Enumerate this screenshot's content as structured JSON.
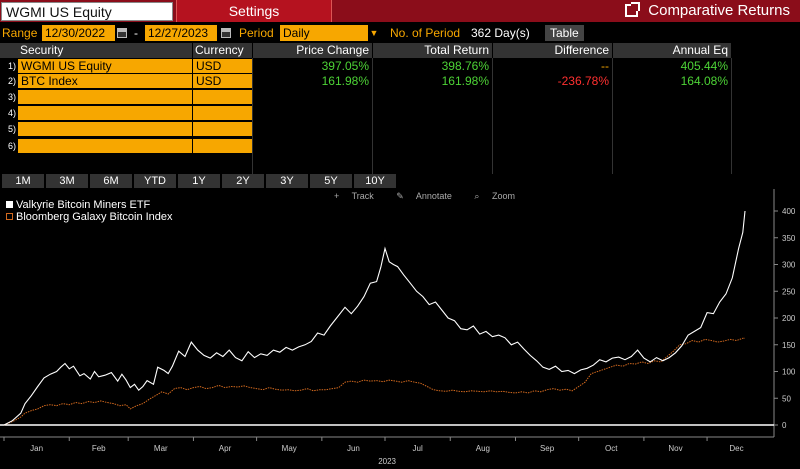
{
  "header": {
    "ticker": "WGMI US Equity",
    "settings_tab": "Settings",
    "function_title": "Comparative Returns",
    "popout_icon": "popout-icon"
  },
  "range": {
    "label": "Range",
    "start": "12/30/2022",
    "dash": "-",
    "end": "12/27/2023",
    "period_label": "Period",
    "period_value": "Daily",
    "num_period_label": "No. of Period",
    "num_period_value": "362 Day(s)",
    "table_button": "Table"
  },
  "table": {
    "columns": [
      "Security",
      "Currency",
      "Price Change",
      "Total Return",
      "Difference",
      "Annual Eq"
    ],
    "rows": [
      {
        "num": "1)",
        "security": "WGMI US Equity",
        "currency": "USD",
        "price_change": "397.05%",
        "total_return": "398.76%",
        "difference": "--",
        "annual_eq": "405.44%"
      },
      {
        "num": "2)",
        "security": "BTC Index",
        "currency": "USD",
        "price_change": "161.98%",
        "total_return": "161.98%",
        "difference": "-236.78%",
        "annual_eq": "164.08%"
      },
      {
        "num": "3)",
        "security": "",
        "currency": "",
        "price_change": "",
        "total_return": "",
        "difference": "",
        "annual_eq": ""
      },
      {
        "num": "4)",
        "security": "",
        "currency": "",
        "price_change": "",
        "total_return": "",
        "difference": "",
        "annual_eq": ""
      },
      {
        "num": "5)",
        "security": "",
        "currency": "",
        "price_change": "",
        "total_return": "",
        "difference": "",
        "annual_eq": ""
      },
      {
        "num": "6)",
        "security": "",
        "currency": "",
        "price_change": "",
        "total_return": "",
        "difference": "",
        "annual_eq": ""
      }
    ]
  },
  "periods": [
    "1M",
    "3M",
    "6M",
    "YTD",
    "1Y",
    "2Y",
    "3Y",
    "5Y",
    "10Y"
  ],
  "chart_tools": {
    "track": "Track",
    "annotate": "Annotate",
    "zoom": "Zoom"
  },
  "colors": {
    "orange": "#f7a700",
    "header_red": "#8b0d1a",
    "positive": "#4dd336",
    "negative": "#ff3030",
    "series_wgmi": "#ffffff",
    "series_btc": "#d2691e"
  },
  "chart_data": {
    "type": "line",
    "title": "",
    "xlabel": "2023",
    "ylabel": "",
    "ylim": [
      0,
      410
    ],
    "yticks": [
      0,
      50,
      100,
      150,
      200,
      250,
      300,
      350,
      400
    ],
    "months": [
      "Jan",
      "Feb",
      "Mar",
      "Apr",
      "May",
      "Jun",
      "Jul",
      "Aug",
      "Sep",
      "Oct",
      "Nov",
      "Dec"
    ],
    "legend_placement": "top-left",
    "series": [
      {
        "name": "Valkyrie Bitcoin Miners ETF",
        "color": "#ffffff",
        "points": [
          [
            0,
            0
          ],
          [
            4,
            8
          ],
          [
            8,
            22
          ],
          [
            10,
            40
          ],
          [
            13,
            55
          ],
          [
            16,
            72
          ],
          [
            19,
            88
          ],
          [
            22,
            95
          ],
          [
            25,
            100
          ],
          [
            27,
            108
          ],
          [
            29,
            115
          ],
          [
            31,
            105
          ],
          [
            33,
            110
          ],
          [
            36,
            92
          ],
          [
            38,
            96
          ],
          [
            41,
            86
          ],
          [
            43,
            100
          ],
          [
            45,
            90
          ],
          [
            48,
            93
          ],
          [
            51,
            98
          ],
          [
            54,
            82
          ],
          [
            56,
            95
          ],
          [
            58,
            84
          ],
          [
            60,
            70
          ],
          [
            62,
            76
          ],
          [
            64,
            65
          ],
          [
            66,
            72
          ],
          [
            68,
            83
          ],
          [
            71,
            76
          ],
          [
            73,
            108
          ],
          [
            76,
            102
          ],
          [
            78,
            96
          ],
          [
            80,
            110
          ],
          [
            83,
            138
          ],
          [
            86,
            128
          ],
          [
            89,
            155
          ],
          [
            92,
            140
          ],
          [
            95,
            130
          ],
          [
            98,
            125
          ],
          [
            101,
            135
          ],
          [
            104,
            128
          ],
          [
            107,
            140
          ],
          [
            110,
            126
          ],
          [
            113,
            120
          ],
          [
            116,
            137
          ],
          [
            119,
            126
          ],
          [
            122,
            133
          ],
          [
            125,
            130
          ],
          [
            128,
            140
          ],
          [
            131,
            136
          ],
          [
            134,
            145
          ],
          [
            137,
            140
          ],
          [
            140,
            146
          ],
          [
            143,
            150
          ],
          [
            146,
            156
          ],
          [
            149,
            172
          ],
          [
            152,
            168
          ],
          [
            155,
            185
          ],
          [
            158,
            200
          ],
          [
            162,
            220
          ],
          [
            165,
            208
          ],
          [
            168,
            222
          ],
          [
            171,
            240
          ],
          [
            174,
            265
          ],
          [
            177,
            268
          ],
          [
            179,
            295
          ],
          [
            181,
            330
          ],
          [
            183,
            305
          ],
          [
            185,
            300
          ],
          [
            187,
            296
          ],
          [
            190,
            280
          ],
          [
            193,
            265
          ],
          [
            196,
            250
          ],
          [
            199,
            240
          ],
          [
            202,
            225
          ],
          [
            205,
            230
          ],
          [
            208,
            215
          ],
          [
            211,
            200
          ],
          [
            214,
            195
          ],
          [
            217,
            180
          ],
          [
            220,
            178
          ],
          [
            223,
            185
          ],
          [
            226,
            170
          ],
          [
            229,
            175
          ],
          [
            232,
            165
          ],
          [
            235,
            168
          ],
          [
            238,
            163
          ],
          [
            241,
            150
          ],
          [
            244,
            155
          ],
          [
            247,
            142
          ],
          [
            250,
            130
          ],
          [
            253,
            120
          ],
          [
            256,
            108
          ],
          [
            259,
            104
          ],
          [
            262,
            110
          ],
          [
            265,
            100
          ],
          [
            268,
            102
          ],
          [
            271,
            96
          ],
          [
            274,
            103
          ],
          [
            277,
            106
          ],
          [
            280,
            112
          ],
          [
            283,
            122
          ],
          [
            286,
            118
          ],
          [
            289,
            125
          ],
          [
            292,
            127
          ],
          [
            295,
            122
          ],
          [
            298,
            128
          ],
          [
            301,
            140
          ],
          [
            304,
            125
          ],
          [
            307,
            118
          ],
          [
            310,
            126
          ],
          [
            313,
            120
          ],
          [
            316,
            126
          ],
          [
            319,
            135
          ],
          [
            322,
            148
          ],
          [
            325,
            168
          ],
          [
            328,
            175
          ],
          [
            331,
            182
          ],
          [
            334,
            210
          ],
          [
            337,
            208
          ],
          [
            340,
            230
          ],
          [
            343,
            245
          ],
          [
            346,
            275
          ],
          [
            349,
            330
          ],
          [
            351,
            360
          ],
          [
            352,
            400
          ]
        ]
      },
      {
        "name": "Bloomberg Galaxy Bitcoin Index",
        "color": "#d2691e",
        "points": [
          [
            0,
            0
          ],
          [
            5,
            8
          ],
          [
            8,
            15
          ],
          [
            10,
            22
          ],
          [
            13,
            27
          ],
          [
            16,
            30
          ],
          [
            19,
            36
          ],
          [
            22,
            38
          ],
          [
            25,
            36
          ],
          [
            28,
            40
          ],
          [
            31,
            38
          ],
          [
            34,
            42
          ],
          [
            37,
            40
          ],
          [
            40,
            44
          ],
          [
            43,
            42
          ],
          [
            46,
            45
          ],
          [
            49,
            42
          ],
          [
            52,
            40
          ],
          [
            55,
            36
          ],
          [
            58,
            38
          ],
          [
            60,
            30
          ],
          [
            63,
            36
          ],
          [
            66,
            40
          ],
          [
            69,
            48
          ],
          [
            72,
            55
          ],
          [
            75,
            62
          ],
          [
            78,
            58
          ],
          [
            81,
            68
          ],
          [
            84,
            70
          ],
          [
            87,
            66
          ],
          [
            90,
            70
          ],
          [
            93,
            72
          ],
          [
            96,
            68
          ],
          [
            99,
            70
          ],
          [
            102,
            74
          ],
          [
            105,
            70
          ],
          [
            108,
            72
          ],
          [
            111,
            71
          ],
          [
            114,
            73
          ],
          [
            117,
            70
          ],
          [
            120,
            68
          ],
          [
            123,
            66
          ],
          [
            126,
            70
          ],
          [
            129,
            67
          ],
          [
            132,
            65
          ],
          [
            135,
            66
          ],
          [
            138,
            64
          ],
          [
            141,
            65
          ],
          [
            144,
            68
          ],
          [
            147,
            64
          ],
          [
            150,
            66
          ],
          [
            153,
            66
          ],
          [
            156,
            68
          ],
          [
            159,
            70
          ],
          [
            162,
            80
          ],
          [
            165,
            82
          ],
          [
            168,
            80
          ],
          [
            171,
            84
          ],
          [
            174,
            82
          ],
          [
            177,
            83
          ],
          [
            180,
            81
          ],
          [
            183,
            84
          ],
          [
            186,
            82
          ],
          [
            189,
            80
          ],
          [
            192,
            83
          ],
          [
            195,
            80
          ],
          [
            198,
            78
          ],
          [
            201,
            72
          ],
          [
            204,
            66
          ],
          [
            207,
            64
          ],
          [
            210,
            63
          ],
          [
            213,
            65
          ],
          [
            216,
            63
          ],
          [
            219,
            62
          ],
          [
            222,
            64
          ],
          [
            225,
            63
          ],
          [
            228,
            62
          ],
          [
            231,
            64
          ],
          [
            234,
            62
          ],
          [
            237,
            63
          ],
          [
            240,
            61
          ],
          [
            243,
            60
          ],
          [
            246,
            62
          ],
          [
            249,
            60
          ],
          [
            252,
            64
          ],
          [
            255,
            62
          ],
          [
            258,
            66
          ],
          [
            261,
            68
          ],
          [
            264,
            65
          ],
          [
            267,
            67
          ],
          [
            270,
            64
          ],
          [
            273,
            72
          ],
          [
            276,
            80
          ],
          [
            279,
            96
          ],
          [
            282,
            100
          ],
          [
            285,
            104
          ],
          [
            288,
            108
          ],
          [
            291,
            112
          ],
          [
            294,
            110
          ],
          [
            297,
            115
          ],
          [
            300,
            114
          ],
          [
            303,
            118
          ],
          [
            306,
            115
          ],
          [
            309,
            120
          ],
          [
            312,
            118
          ],
          [
            315,
            128
          ],
          [
            318,
            138
          ],
          [
            321,
            150
          ],
          [
            324,
            152
          ],
          [
            327,
            158
          ],
          [
            330,
            155
          ],
          [
            333,
            160
          ],
          [
            336,
            158
          ],
          [
            339,
            155
          ],
          [
            342,
            157
          ],
          [
            345,
            160
          ],
          [
            348,
            158
          ],
          [
            351,
            162
          ],
          [
            352,
            162
          ]
        ]
      }
    ]
  }
}
